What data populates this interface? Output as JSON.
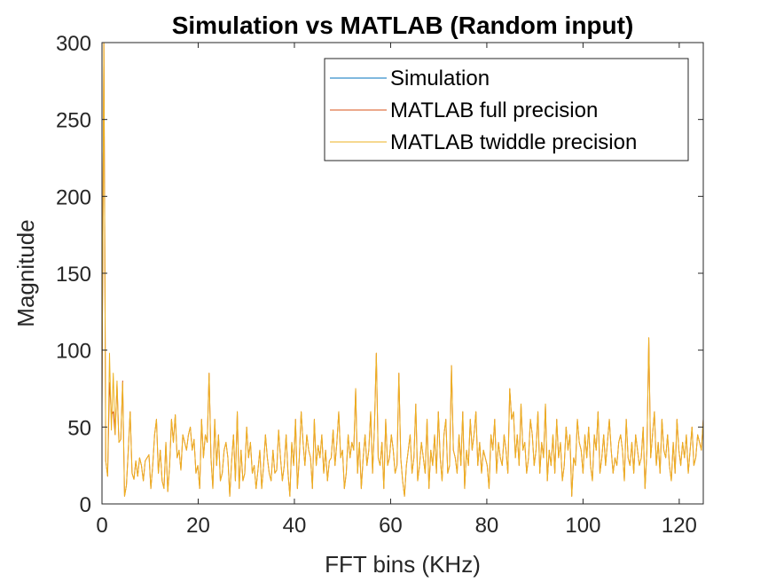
{
  "chart_data": {
    "type": "line",
    "title": "Simulation vs MATLAB (Random input)",
    "xlabel": "FFT bins (KHz)",
    "ylabel": "Magnitude",
    "xlim": [
      0,
      125
    ],
    "ylim": [
      0,
      300
    ],
    "xticks": [
      0,
      20,
      40,
      60,
      80,
      100,
      120
    ],
    "yticks": [
      0,
      50,
      100,
      150,
      200,
      250,
      300
    ],
    "grid": false,
    "legend_position": "top-right",
    "x_start": 0,
    "x_step": 0.390625,
    "series": [
      {
        "name": "Simulation",
        "color": "#0072BD",
        "values": []
      },
      {
        "name": "MATLAB full precision",
        "color": "#D95319",
        "values": [
          62,
          300,
          28,
          18,
          79,
          58,
          60,
          45,
          78,
          40,
          42,
          80,
          5,
          12,
          35,
          60,
          20,
          16,
          28,
          18,
          30,
          25,
          15,
          28,
          30,
          32,
          10,
          25,
          45,
          55,
          20,
          35,
          15,
          10,
          40,
          8,
          25,
          55,
          40,
          58,
          30,
          35,
          22,
          45,
          40,
          35,
          45,
          50,
          35,
          42,
          20,
          25,
          10,
          55,
          30,
          45,
          40,
          85,
          30,
          10,
          55,
          25,
          45,
          15,
          20,
          35,
          40,
          30,
          5,
          28,
          45,
          15,
          60,
          10,
          35,
          15,
          20,
          50,
          30,
          40,
          20,
          25,
          10,
          22,
          35,
          10,
          25,
          45,
          30,
          20,
          15,
          35,
          20,
          22,
          48,
          30,
          15,
          25,
          45,
          20,
          5,
          40,
          25,
          55,
          10,
          30,
          60,
          40,
          25,
          45,
          35,
          30,
          10,
          55,
          25,
          38,
          30,
          45,
          20,
          35,
          15,
          28,
          30,
          48,
          25,
          40,
          60,
          30,
          35,
          10,
          20,
          45,
          30,
          40,
          35,
          75,
          20,
          40,
          10,
          30,
          45,
          25,
          35,
          60,
          20,
          50,
          98,
          30,
          25,
          40,
          10,
          55,
          25,
          30,
          45,
          35,
          20,
          25,
          85,
          30,
          15,
          5,
          25,
          35,
          45,
          20,
          30,
          65,
          15,
          25,
          40,
          30,
          20,
          55,
          10,
          35,
          25,
          45,
          20,
          60,
          30,
          15,
          45,
          55,
          20,
          25,
          90,
          35,
          30,
          20,
          45,
          25,
          60,
          10,
          35,
          25,
          55,
          35,
          45,
          60,
          25,
          40,
          20,
          35,
          30,
          25,
          10,
          45,
          35,
          55,
          20,
          40,
          30,
          25,
          45,
          35,
          20,
          75,
          55,
          60,
          30,
          45,
          25,
          65,
          35,
          40,
          20,
          30,
          55,
          45,
          25,
          35,
          60,
          20,
          40,
          30,
          65,
          15,
          35,
          25,
          45,
          20,
          55,
          30,
          40,
          15,
          25,
          50,
          35,
          45,
          5,
          30,
          25,
          55,
          40,
          35,
          20,
          45,
          30,
          50,
          25,
          15,
          45,
          35,
          60,
          20,
          30,
          45,
          25,
          40,
          55,
          35,
          20,
          30,
          25,
          40,
          45,
          35,
          15,
          55,
          30,
          25,
          40,
          20,
          45,
          35,
          25,
          30,
          50,
          10,
          35,
          108,
          30,
          45,
          60,
          25,
          40,
          20,
          55,
          35,
          30,
          45,
          25,
          15,
          40,
          20,
          55,
          35,
          25,
          40,
          30,
          45,
          20,
          35,
          50,
          25,
          30,
          45,
          40,
          35,
          55,
          20,
          30,
          25,
          40,
          35,
          45,
          20,
          30,
          25,
          35,
          95,
          45,
          15
        ]
      },
      {
        "name": "MATLAB twiddle precision",
        "color": "#EDB120",
        "values": [
          62,
          300,
          28,
          18,
          98,
          48,
          85,
          45,
          80,
          40,
          42,
          79,
          5,
          12,
          35,
          60,
          20,
          16,
          28,
          18,
          30,
          25,
          15,
          28,
          30,
          32,
          10,
          25,
          45,
          55,
          20,
          35,
          15,
          10,
          40,
          8,
          25,
          55,
          40,
          58,
          30,
          35,
          22,
          45,
          40,
          35,
          45,
          50,
          35,
          42,
          20,
          25,
          10,
          55,
          30,
          45,
          40,
          85,
          30,
          10,
          55,
          25,
          45,
          15,
          20,
          35,
          40,
          30,
          5,
          28,
          45,
          15,
          60,
          10,
          35,
          15,
          20,
          50,
          30,
          40,
          20,
          25,
          10,
          22,
          35,
          10,
          25,
          45,
          30,
          20,
          15,
          35,
          20,
          22,
          48,
          30,
          15,
          25,
          45,
          20,
          5,
          40,
          25,
          55,
          10,
          30,
          60,
          40,
          25,
          45,
          35,
          30,
          10,
          55,
          25,
          38,
          30,
          45,
          20,
          35,
          15,
          28,
          30,
          48,
          25,
          40,
          60,
          30,
          35,
          10,
          20,
          45,
          30,
          40,
          35,
          75,
          20,
          40,
          10,
          30,
          45,
          25,
          35,
          60,
          20,
          50,
          98,
          30,
          25,
          40,
          10,
          55,
          25,
          30,
          45,
          35,
          20,
          25,
          85,
          30,
          15,
          5,
          25,
          35,
          45,
          20,
          30,
          65,
          15,
          25,
          40,
          30,
          20,
          55,
          10,
          35,
          25,
          45,
          20,
          60,
          30,
          15,
          45,
          55,
          20,
          25,
          90,
          35,
          30,
          20,
          45,
          25,
          60,
          10,
          35,
          25,
          55,
          35,
          45,
          60,
          25,
          40,
          20,
          35,
          30,
          25,
          10,
          45,
          35,
          55,
          20,
          40,
          30,
          25,
          45,
          35,
          20,
          75,
          55,
          60,
          30,
          45,
          25,
          65,
          35,
          40,
          20,
          30,
          55,
          45,
          25,
          35,
          60,
          20,
          40,
          30,
          65,
          15,
          35,
          25,
          45,
          20,
          55,
          30,
          40,
          15,
          25,
          50,
          35,
          45,
          5,
          30,
          25,
          55,
          40,
          35,
          20,
          45,
          30,
          50,
          25,
          15,
          45,
          35,
          60,
          20,
          30,
          45,
          25,
          40,
          55,
          35,
          20,
          30,
          25,
          40,
          45,
          35,
          15,
          55,
          30,
          25,
          40,
          20,
          45,
          35,
          25,
          30,
          50,
          10,
          35,
          108,
          30,
          45,
          60,
          25,
          40,
          20,
          55,
          35,
          30,
          45,
          25,
          15,
          40,
          20,
          55,
          35,
          25,
          40,
          30,
          45,
          20,
          35,
          50,
          25,
          30,
          45,
          40,
          35,
          55,
          20,
          30,
          25,
          40,
          35,
          45,
          20,
          30,
          25,
          35,
          95,
          45,
          15
        ]
      }
    ]
  }
}
